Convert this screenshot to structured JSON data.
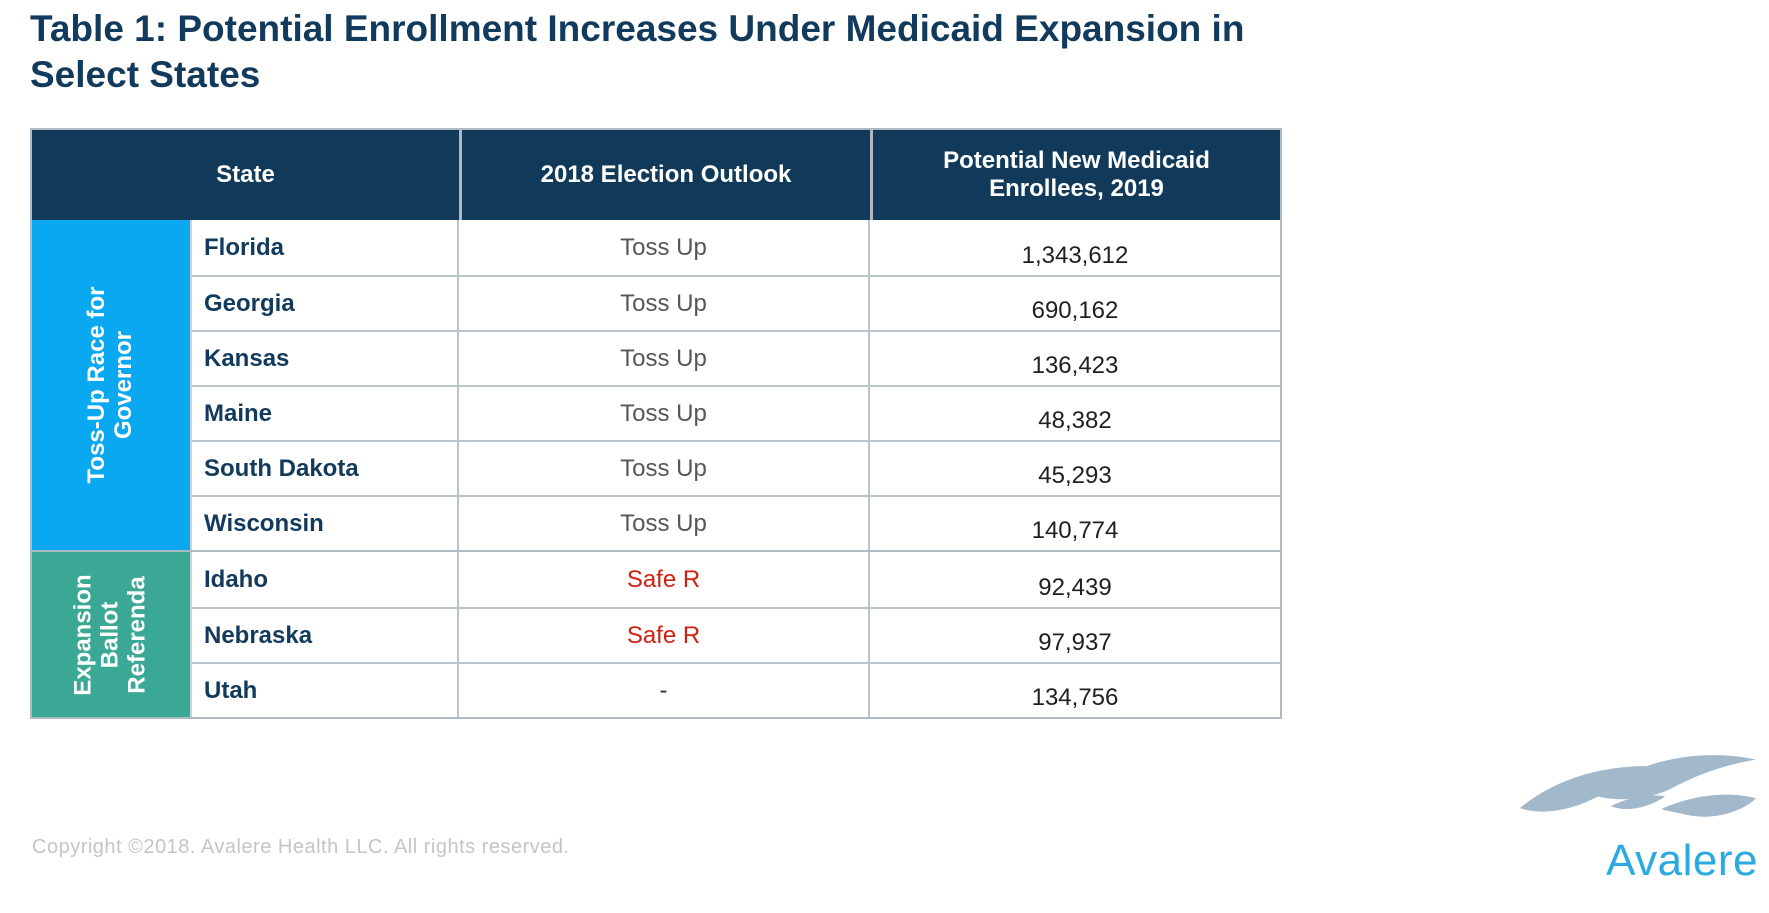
{
  "title": "Table 1: Potential Enrollment Increases Under Medicaid Expansion in Select States",
  "table": {
    "columns": [
      "State",
      "2018 Election Outlook",
      "Potential New Medicaid Enrollees, 2019"
    ],
    "groups": [
      {
        "label": "Toss-Up Race for Governor",
        "color": "#09a8f1",
        "rows": [
          {
            "state": "Florida",
            "outlook": "Toss Up",
            "enrollees": "1,343,612"
          },
          {
            "state": "Georgia",
            "outlook": "Toss Up",
            "enrollees": "690,162"
          },
          {
            "state": "Kansas",
            "outlook": "Toss Up",
            "enrollees": "136,423"
          },
          {
            "state": "Maine",
            "outlook": "Toss Up",
            "enrollees": "48,382"
          },
          {
            "state": "South Dakota",
            "outlook": "Toss Up",
            "enrollees": "45,293"
          },
          {
            "state": "Wisconsin",
            "outlook": "Toss Up",
            "enrollees": "140,774"
          }
        ]
      },
      {
        "label": "Expansion Ballot Referenda",
        "color": "#3ba795",
        "rows": [
          {
            "state": "Idaho",
            "outlook": "Safe R",
            "enrollees": "92,439"
          },
          {
            "state": "Nebraska",
            "outlook": "Safe R",
            "enrollees": "97,937"
          },
          {
            "state": "Utah",
            "outlook": "-",
            "enrollees": "134,756"
          }
        ]
      }
    ]
  },
  "colors": {
    "header_bg": "#113a5a",
    "title_navy": "#113a5c",
    "toss_up_gray": "#56575a",
    "safe_r_red": "#d11f12",
    "logo_cyan": "#29abe2",
    "logo_swoosh": "#a2b8cb"
  },
  "footer": {
    "copyright": "Copyright ©2018. Avalere Health LLC. All rights reserved.",
    "logo_text": "Avalere"
  }
}
